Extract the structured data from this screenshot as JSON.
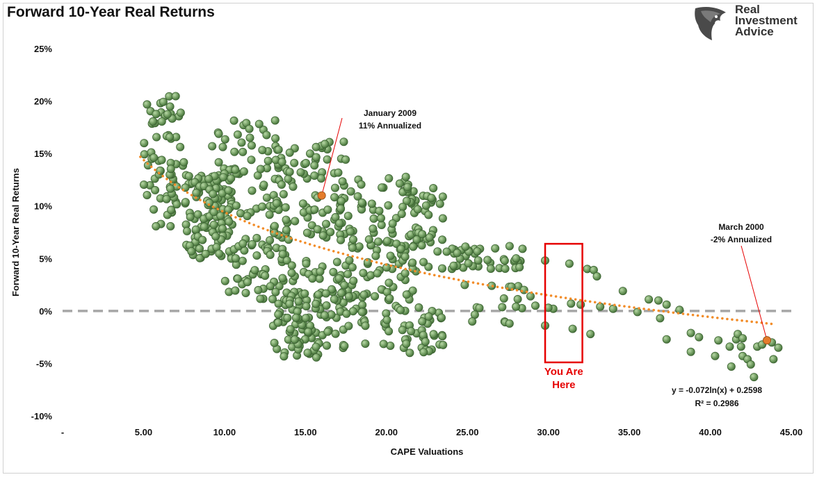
{
  "header": {
    "title": "Forward 10-Year Real Returns",
    "logo_line1": "Real",
    "logo_line2": "Investment",
    "logo_line3": "Advice"
  },
  "chart_data": {
    "type": "scatter",
    "title": "Forward 10-Year Real Returns",
    "xlabel": "CAPE Valuations",
    "ylabel": "Forward 10-Year Real Returns",
    "xlim": [
      0,
      45
    ],
    "ylim": [
      -10,
      25
    ],
    "x_ticks": [
      "-",
      "5.00",
      "10.00",
      "15.00",
      "20.00",
      "25.00",
      "30.00",
      "35.00",
      "40.00",
      "45.00"
    ],
    "y_ticks": [
      "-10%",
      "-5%",
      "0%",
      "5%",
      "10%",
      "15%",
      "20%",
      "25%"
    ],
    "grid": false,
    "legend": "none",
    "colors": {
      "points": "#6e9a5e",
      "trend": "#f28c28",
      "zero_line": "#a6a6a6",
      "highlight_box": "#e60000",
      "highlight_point": "#e57c2c"
    },
    "zero_line": {
      "y": 0,
      "style": "dashed"
    },
    "trendline": {
      "type": "logarithmic",
      "a": -0.072,
      "b": 0.2598,
      "x_range": [
        4.8,
        44
      ],
      "equation": "y = -0.072ln(x) + 0.2598",
      "r2": "R² = 0.2986"
    },
    "highlight_box": {
      "x": [
        29.8,
        32.1
      ],
      "y": [
        -4.9,
        6.4
      ],
      "label_line1": "You Are",
      "label_line2": "Here"
    },
    "annotations": [
      {
        "x": 16.0,
        "y": 11.0,
        "text_line1": "January 2009",
        "text_line2": "11% Annualized"
      },
      {
        "x": 43.5,
        "y": -2.8,
        "text_line1": "March 2000",
        "text_line2": "-2% Annualized"
      }
    ],
    "clusters": [
      {
        "x": [
          5.0,
          7.5
        ],
        "y": [
          8,
          20.5
        ],
        "n": 70
      },
      {
        "x": [
          7.5,
          10.5
        ],
        "y": [
          5,
          13
        ],
        "n": 110
      },
      {
        "x": [
          9,
          13.5
        ],
        "y": [
          9,
          18.5
        ],
        "n": 70
      },
      {
        "x": [
          10,
          14
        ],
        "y": [
          1,
          7
        ],
        "n": 60
      },
      {
        "x": [
          13,
          16
        ],
        "y": [
          -4.5,
          2
        ],
        "n": 60
      },
      {
        "x": [
          13,
          17.5
        ],
        "y": [
          7,
          16.5
        ],
        "n": 90
      },
      {
        "x": [
          14,
          19
        ],
        "y": [
          -4,
          5
        ],
        "n": 80
      },
      {
        "x": [
          17,
          22
        ],
        "y": [
          1,
          13
        ],
        "n": 110
      },
      {
        "x": [
          19.5,
          23.5
        ],
        "y": [
          -4,
          0.5
        ],
        "n": 50
      },
      {
        "x": [
          20,
          23.5
        ],
        "y": [
          4,
          12.5
        ],
        "n": 50
      },
      {
        "x": [
          23.5,
          28.5
        ],
        "y": [
          4,
          6.2
        ],
        "n": 45
      },
      {
        "x": [
          24,
          29
        ],
        "y": [
          -1.5,
          2.5
        ],
        "n": 14
      }
    ],
    "points": [
      [
        29.8,
        4.8
      ],
      [
        31.3,
        4.5
      ],
      [
        29.8,
        -1.4
      ],
      [
        31.5,
        -1.7
      ],
      [
        30.3,
        0.2
      ],
      [
        31.4,
        0.7
      ],
      [
        30.0,
        0.3
      ],
      [
        32.4,
        4.0
      ],
      [
        32.8,
        3.9
      ],
      [
        33.0,
        3.3
      ],
      [
        32.6,
        -2.2
      ],
      [
        32.0,
        0.6
      ],
      [
        33.2,
        0.4
      ],
      [
        34.0,
        0.2
      ],
      [
        34.6,
        1.9
      ],
      [
        35.5,
        -0.1
      ],
      [
        36.2,
        1.1
      ],
      [
        36.8,
        1.0
      ],
      [
        37.3,
        0.6
      ],
      [
        36.9,
        -0.7
      ],
      [
        37.3,
        -2.7
      ],
      [
        38.1,
        0.1
      ],
      [
        38.8,
        -2.1
      ],
      [
        39.3,
        -2.5
      ],
      [
        38.8,
        -3.9
      ],
      [
        40.3,
        -4.3
      ],
      [
        40.5,
        -2.8
      ],
      [
        41.2,
        -3.4
      ],
      [
        41.6,
        -2.7
      ],
      [
        41.9,
        -3.4
      ],
      [
        42.0,
        -4.3
      ],
      [
        42.3,
        -4.6
      ],
      [
        42.5,
        -5.1
      ],
      [
        42.7,
        -6.3
      ],
      [
        42.9,
        -3.4
      ],
      [
        43.2,
        -3.2
      ],
      [
        43.8,
        -3.0
      ],
      [
        44.2,
        -3.5
      ],
      [
        43.9,
        -4.6
      ],
      [
        41.7,
        -2.2
      ],
      [
        42.0,
        -2.6
      ],
      [
        41.3,
        -5.3
      ],
      [
        27.6,
        -1.2
      ],
      [
        28.5,
        2.0
      ],
      [
        28.9,
        1.4
      ],
      [
        29.2,
        0.5
      ],
      [
        28.0,
        0.4
      ],
      [
        26.5,
        2.4
      ]
    ]
  }
}
